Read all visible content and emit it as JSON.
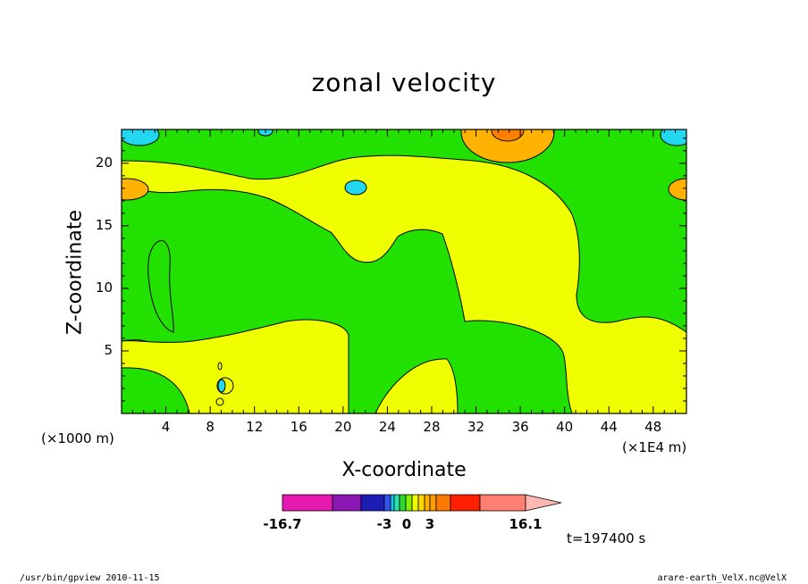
{
  "chart_data": {
    "type": "contour",
    "title": "zonal velocity",
    "xlabel": "X-coordinate",
    "ylabel": "Z-coordinate",
    "x_unit_left": "(×1000 m)",
    "x_unit_right": "(×1E4 m)",
    "xlim": [
      0,
      51
    ],
    "ylim": [
      0,
      22.7
    ],
    "x_ticks": [
      "4",
      "8",
      "12",
      "16",
      "20",
      "24",
      "28",
      "32",
      "36",
      "40",
      "44",
      "48"
    ],
    "y_ticks": [
      "5",
      "10",
      "15",
      "20"
    ],
    "colorbar": {
      "tick_labels": [
        "-16.7",
        "-3",
        "0",
        "3",
        "16.1"
      ],
      "levels": [
        -16.7,
        -12,
        -8,
        -6,
        -4,
        -3,
        -2,
        -1,
        0,
        1,
        2,
        3,
        4,
        6,
        8,
        12,
        16.1
      ],
      "colors": [
        "#e619b0",
        "#8a16b3",
        "#1d1db3",
        "#3355ee",
        "#16c8f0",
        "#2ee0b0",
        "#2ed82e",
        "#82f000",
        "#f0ff00",
        "#ffd700",
        "#ffb000",
        "#ff9a00",
        "#ff7a00",
        "#ff2000",
        "#ff8070",
        "#ffb8b0"
      ]
    },
    "dominant_colors": {
      "positive_0_1": "#f0ff00",
      "negative_-1_0": "#22e000",
      "negative_-3_-2": "#22d8f0",
      "positive_1_3": "#ffb300",
      "positive_3_4": "#ff7f00"
    }
  },
  "footer": {
    "time": "t=197400 s",
    "program": "/usr/bin/gpview  2010-11-15",
    "file": "arare-earth_VelX.nc@VelX"
  }
}
